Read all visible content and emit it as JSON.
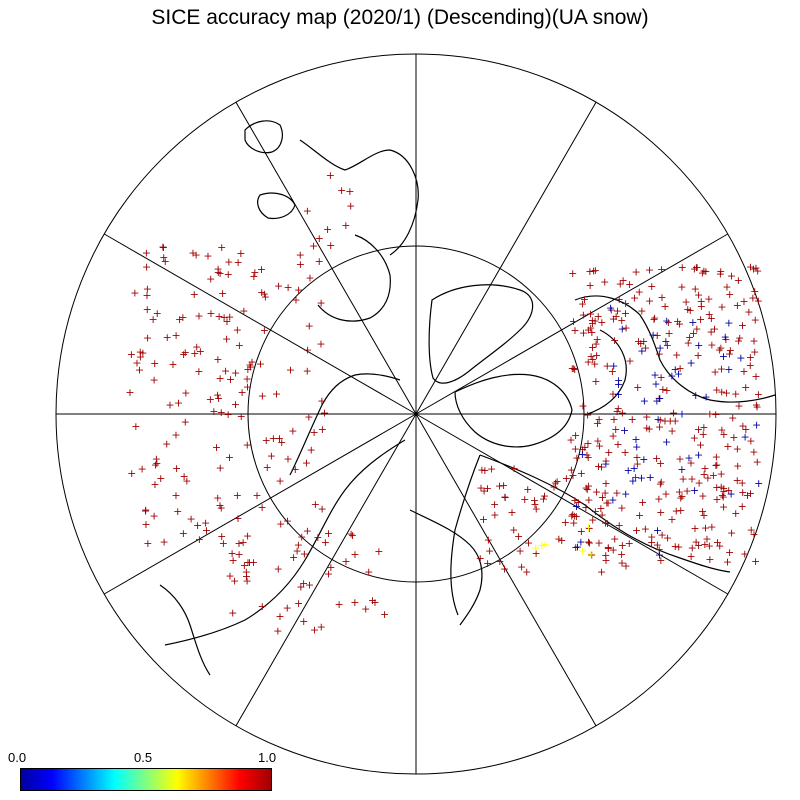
{
  "title": "SICE accuracy map (2020/1) (Descending)(UA snow)",
  "colorbar": {
    "min_label": "0.0",
    "mid_label": "0.5",
    "max_label": "1.0",
    "colors": [
      "#0000a0",
      "#0000ff",
      "#0080ff",
      "#00ffff",
      "#80ff80",
      "#ffff00",
      "#ff8000",
      "#ff0000",
      "#a00000"
    ]
  },
  "map": {
    "projection": "north-polar-stereographic",
    "meridian_lines_every_deg": 30,
    "latitude_circle": "inner circle",
    "marker": "+",
    "marker_colors": {
      "high_accuracy": "#a00000",
      "low_accuracy": "#0000a0",
      "mid_accuracy": "#ffff00"
    },
    "coastline_color": "#000000"
  }
}
